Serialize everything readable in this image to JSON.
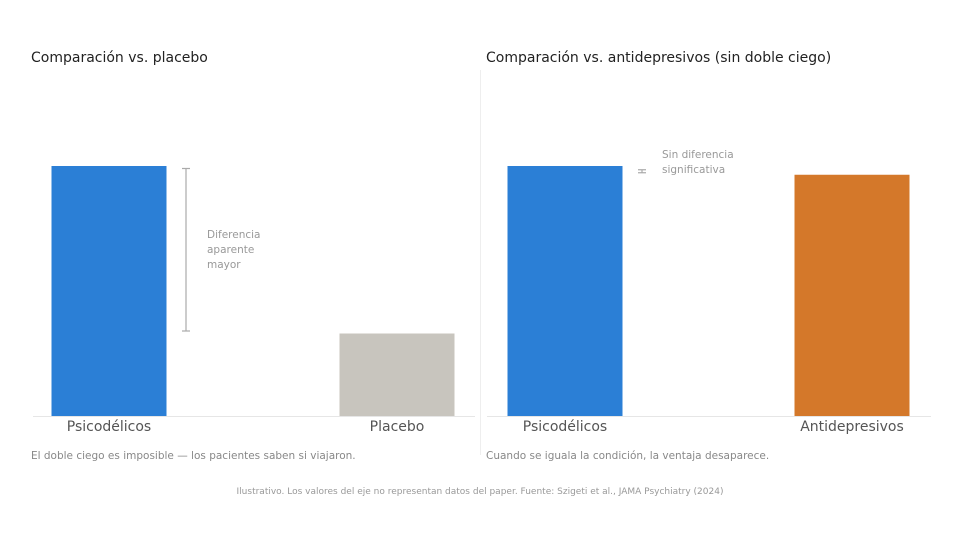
{
  "chart_data": [
    {
      "type": "bar",
      "title": "Comparación vs. placebo",
      "categories": [
        "Psicodélicos",
        "Placebo"
      ],
      "values": [
        100,
        33
      ],
      "colors": [
        "#2b7fd6",
        "#c8c5be"
      ],
      "ylim": [
        0,
        100
      ],
      "annotation": {
        "lines": [
          "Diferencia",
          "aparente",
          "mayor"
        ],
        "from": 99,
        "to": 34
      },
      "caption": "El doble ciego es imposible — los pacientes saben si viajaron.",
      "grid": false,
      "legend": "none"
    },
    {
      "type": "bar",
      "title": "Comparación vs. antidepresivos (sin doble ciego)",
      "categories": [
        "Psicodélicos",
        "Antidepresivos"
      ],
      "values": [
        100,
        96.5
      ],
      "colors": [
        "#2b7fd6",
        "#d4782a"
      ],
      "ylim": [
        0,
        100
      ],
      "annotation": {
        "lines": [
          "Sin diferencia",
          "significativa"
        ],
        "from": 98.5,
        "to": 97.3
      },
      "caption": "Cuando se iguala la condición, la ventaja desaparece.",
      "grid": false,
      "legend": "none"
    }
  ],
  "footer": "Ilustrativo. Los valores del eje no representan datos del paper. Fuente: Szigeti et al., JAMA Psychiatry (2024)"
}
